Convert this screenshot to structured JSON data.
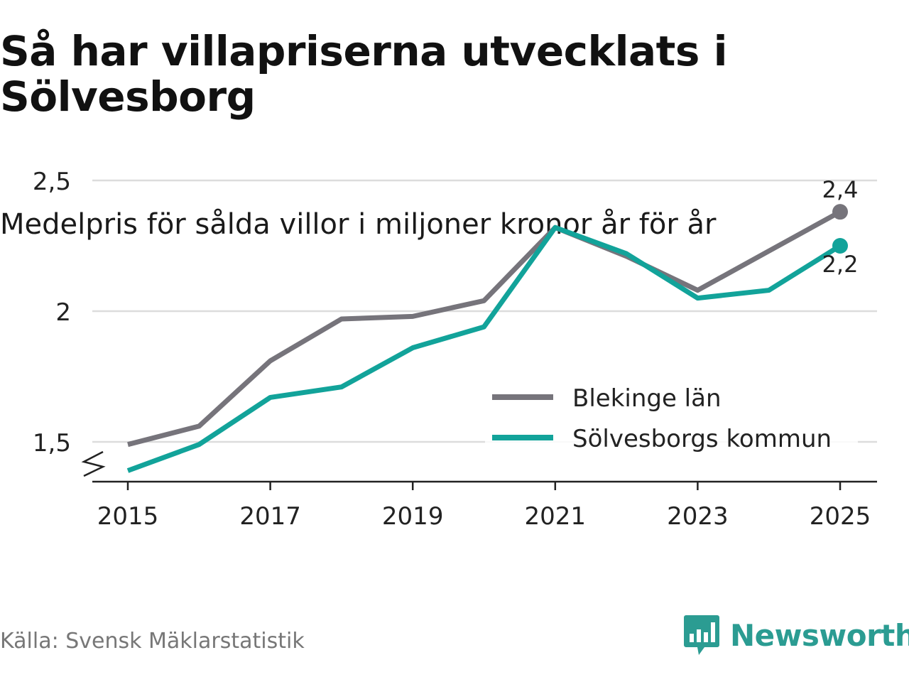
{
  "header": {
    "title": "Så har villapriserna utvecklats i Sölvesborg",
    "subtitle": "Medelpris för sålda villor i miljoner kronor år för år"
  },
  "footer": {
    "source": "Källa: Svensk Mäklarstatistik",
    "brand": "Newsworthy",
    "brand_icon": "bar-chart-speech-bubble-icon"
  },
  "colors": {
    "blekinge": "#76747b",
    "solvesborg": "#12a39a",
    "grid": "#dcdcdc",
    "axis": "#222222",
    "brand": "#2b9c92"
  },
  "chart_data": {
    "type": "line",
    "title": "Så har villapriserna utvecklats i Sölvesborg",
    "subtitle": "Medelpris för sålda villor i miljoner kronor år för år",
    "xlabel": "",
    "ylabel": "",
    "x": [
      2015,
      2016,
      2017,
      2018,
      2019,
      2020,
      2021,
      2022,
      2023,
      2024,
      2025
    ],
    "xticks": [
      "2015",
      "2017",
      "2019",
      "2021",
      "2023",
      "2025"
    ],
    "yticks": [
      {
        "value": 1.5,
        "label": "1,5"
      },
      {
        "value": 2,
        "label": "2"
      },
      {
        "value": 2.5,
        "label": "2,5"
      }
    ],
    "ylim": [
      1.22,
      2.62
    ],
    "axis_break": true,
    "grid": true,
    "legend_position": "center-right",
    "series": [
      {
        "name": "Blekinge län",
        "key": "blekinge",
        "values": [
          1.49,
          1.56,
          1.81,
          1.97,
          1.98,
          2.04,
          2.32,
          2.21,
          2.08,
          2.23,
          2.38
        ],
        "end_label": "2,4"
      },
      {
        "name": "Sölvesborgs kommun",
        "key": "solvesborg",
        "values": [
          1.39,
          1.49,
          1.67,
          1.71,
          1.86,
          1.94,
          2.32,
          2.22,
          2.05,
          2.08,
          2.25
        ],
        "end_label": "2,2"
      }
    ]
  }
}
